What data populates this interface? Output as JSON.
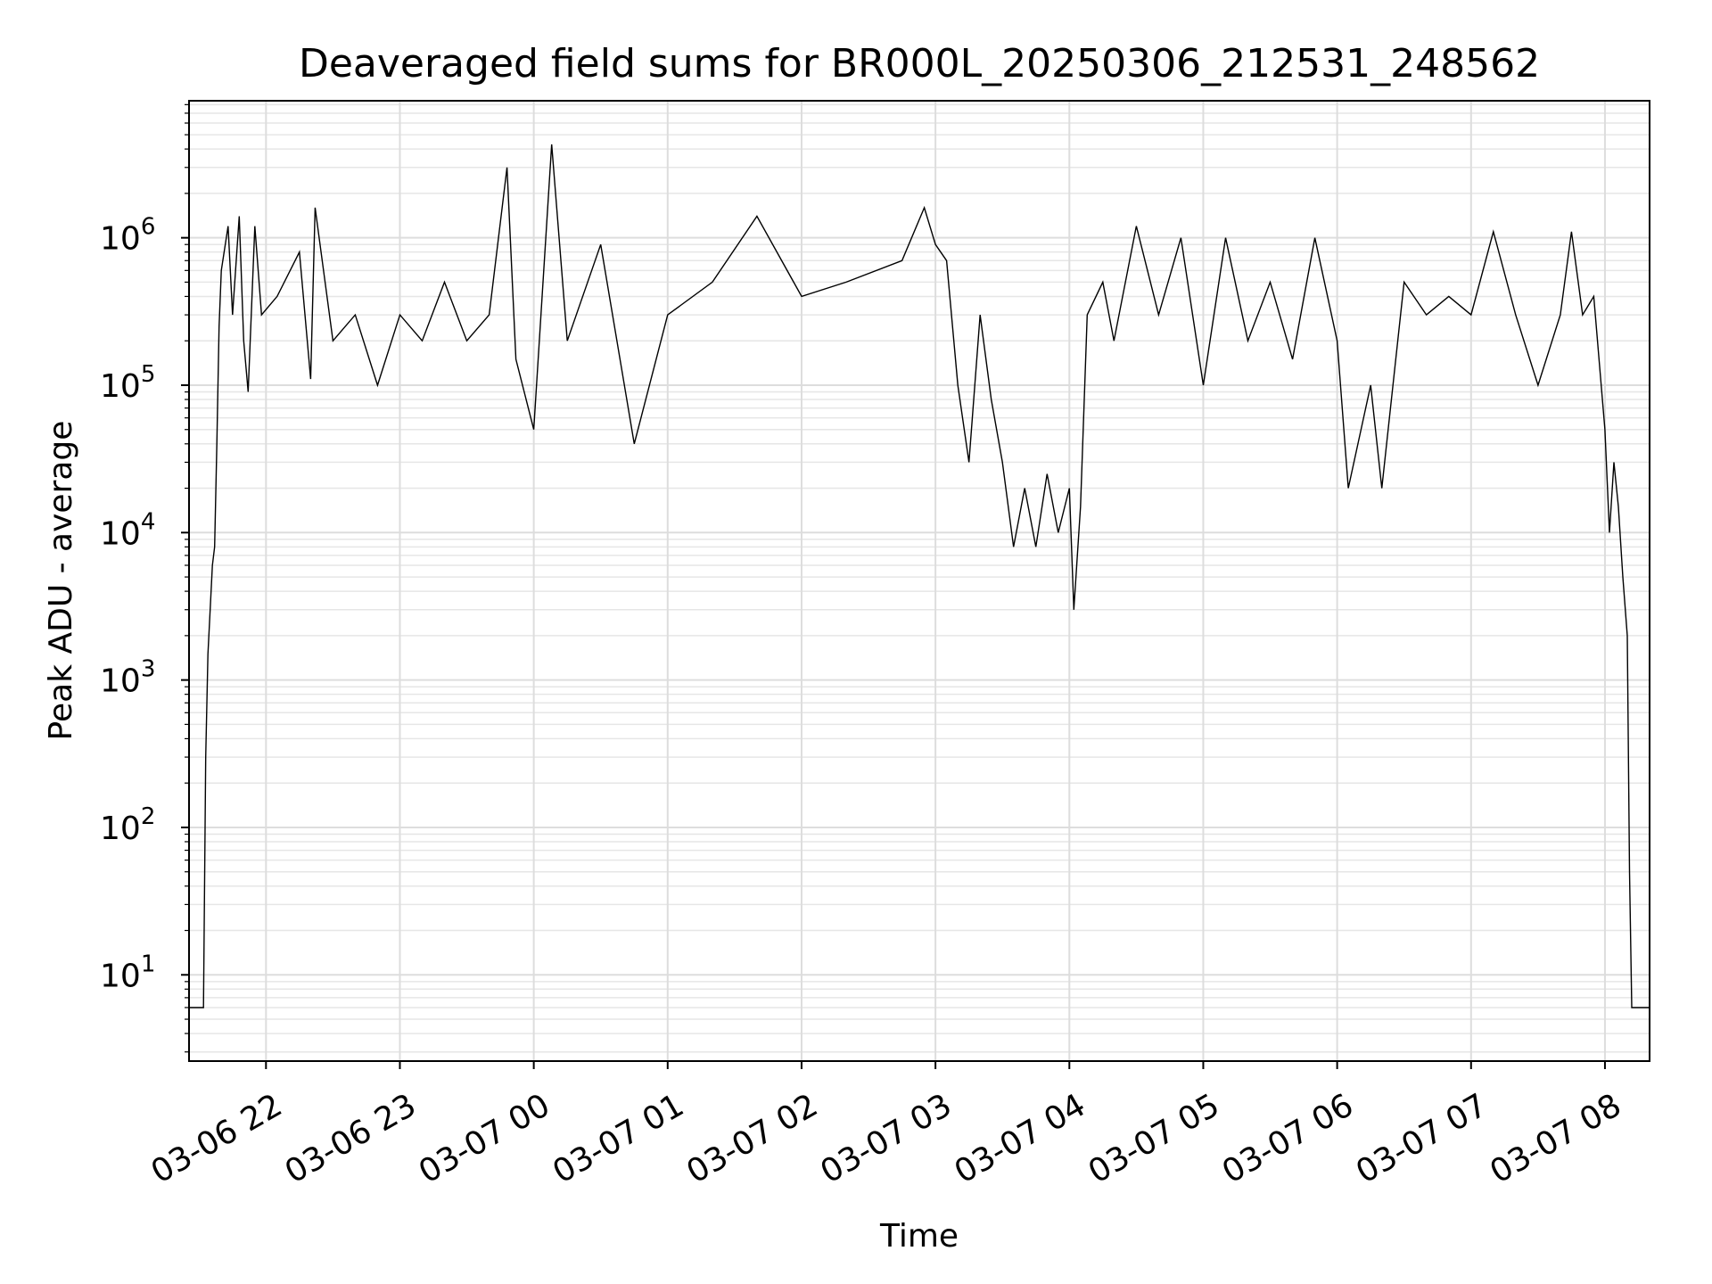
{
  "chart_data": {
    "type": "line",
    "title": "Deaveraged field sums for BR000L_20250306_212531_248562",
    "xlabel": "Time",
    "ylabel": "Peak ADU - average",
    "yscale": "log",
    "ylim": [
      2.6,
      8500000
    ],
    "xlim": [
      "2025-03-06 21:25:31",
      "2025-03-07 08:20:00"
    ],
    "grid": true,
    "x_ticks": [
      {
        "t": "2025-03-06 22:00",
        "label": "03-06 22"
      },
      {
        "t": "2025-03-06 23:00",
        "label": "03-06 23"
      },
      {
        "t": "2025-03-07 00:00",
        "label": "03-07 00"
      },
      {
        "t": "2025-03-07 01:00",
        "label": "03-07 01"
      },
      {
        "t": "2025-03-07 02:00",
        "label": "03-07 02"
      },
      {
        "t": "2025-03-07 03:00",
        "label": "03-07 03"
      },
      {
        "t": "2025-03-07 04:00",
        "label": "03-07 04"
      },
      {
        "t": "2025-03-07 05:00",
        "label": "03-07 05"
      },
      {
        "t": "2025-03-07 06:00",
        "label": "03-07 06"
      },
      {
        "t": "2025-03-07 07:00",
        "label": "03-07 07"
      },
      {
        "t": "2025-03-07 08:00",
        "label": "03-07 08"
      }
    ],
    "y_ticks": [
      {
        "value": 10,
        "base": "10",
        "exp": "1"
      },
      {
        "value": 100,
        "base": "10",
        "exp": "2"
      },
      {
        "value": 1000,
        "base": "10",
        "exp": "3"
      },
      {
        "value": 10000,
        "base": "10",
        "exp": "4"
      },
      {
        "value": 100000,
        "base": "10",
        "exp": "5"
      },
      {
        "value": 1000000,
        "base": "10",
        "exp": "6"
      }
    ],
    "series": [
      {
        "color": "#000000",
        "points": [
          [
            "2025-03-06 21:25:31",
            6
          ],
          [
            "2025-03-06 21:30:00",
            6
          ],
          [
            "2025-03-06 21:32:00",
            6
          ],
          [
            "2025-03-06 21:33:00",
            300
          ],
          [
            "2025-03-06 21:34:00",
            1500
          ],
          [
            "2025-03-06 21:35:00",
            3000
          ],
          [
            "2025-03-06 21:36:00",
            6000
          ],
          [
            "2025-03-06 21:37:00",
            8000
          ],
          [
            "2025-03-06 21:38:00",
            40000
          ],
          [
            "2025-03-06 21:39:00",
            250000
          ],
          [
            "2025-03-06 21:40:00",
            600000
          ],
          [
            "2025-03-06 21:43:00",
            1200000
          ],
          [
            "2025-03-06 21:45:00",
            300000
          ],
          [
            "2025-03-06 21:48:00",
            1400000
          ],
          [
            "2025-03-06 21:50:00",
            200000
          ],
          [
            "2025-03-06 21:52:00",
            90000
          ],
          [
            "2025-03-06 21:55:00",
            1200000
          ],
          [
            "2025-03-06 21:58:00",
            300000
          ],
          [
            "2025-03-06 22:05:00",
            400000
          ],
          [
            "2025-03-06 22:15:00",
            800000
          ],
          [
            "2025-03-06 22:20:00",
            110000
          ],
          [
            "2025-03-06 22:22:00",
            1600000
          ],
          [
            "2025-03-06 22:30:00",
            200000
          ],
          [
            "2025-03-06 22:40:00",
            300000
          ],
          [
            "2025-03-06 22:50:00",
            100000
          ],
          [
            "2025-03-06 23:00:00",
            300000
          ],
          [
            "2025-03-06 23:10:00",
            200000
          ],
          [
            "2025-03-06 23:20:00",
            500000
          ],
          [
            "2025-03-06 23:30:00",
            200000
          ],
          [
            "2025-03-06 23:40:00",
            300000
          ],
          [
            "2025-03-06 23:48:00",
            3000000
          ],
          [
            "2025-03-06 23:52:00",
            150000
          ],
          [
            "2025-03-07 00:00:00",
            50000
          ],
          [
            "2025-03-07 00:08:00",
            4300000
          ],
          [
            "2025-03-07 00:15:00",
            200000
          ],
          [
            "2025-03-07 00:30:00",
            900000
          ],
          [
            "2025-03-07 00:45:00",
            40000
          ],
          [
            "2025-03-07 01:00:00",
            300000
          ],
          [
            "2025-03-07 01:20:00",
            500000
          ],
          [
            "2025-03-07 01:40:00",
            1400000
          ],
          [
            "2025-03-07 02:00:00",
            400000
          ],
          [
            "2025-03-07 02:20:00",
            500000
          ],
          [
            "2025-03-07 02:45:00",
            700000
          ],
          [
            "2025-03-07 02:55:00",
            1600000
          ],
          [
            "2025-03-07 03:00:00",
            900000
          ],
          [
            "2025-03-07 03:05:00",
            700000
          ],
          [
            "2025-03-07 03:10:00",
            100000
          ],
          [
            "2025-03-07 03:15:00",
            30000
          ],
          [
            "2025-03-07 03:20:00",
            300000
          ],
          [
            "2025-03-07 03:25:00",
            80000
          ],
          [
            "2025-03-07 03:30:00",
            30000
          ],
          [
            "2025-03-07 03:35:00",
            8000
          ],
          [
            "2025-03-07 03:40:00",
            20000
          ],
          [
            "2025-03-07 03:45:00",
            8000
          ],
          [
            "2025-03-07 03:50:00",
            25000
          ],
          [
            "2025-03-07 03:55:00",
            10000
          ],
          [
            "2025-03-07 04:00:00",
            20000
          ],
          [
            "2025-03-07 04:02:00",
            3000
          ],
          [
            "2025-03-07 04:05:00",
            15000
          ],
          [
            "2025-03-07 04:08:00",
            300000
          ],
          [
            "2025-03-07 04:15:00",
            500000
          ],
          [
            "2025-03-07 04:20:00",
            200000
          ],
          [
            "2025-03-07 04:30:00",
            1200000
          ],
          [
            "2025-03-07 04:40:00",
            300000
          ],
          [
            "2025-03-07 04:50:00",
            1000000
          ],
          [
            "2025-03-07 05:00:00",
            100000
          ],
          [
            "2025-03-07 05:10:00",
            1000000
          ],
          [
            "2025-03-07 05:20:00",
            200000
          ],
          [
            "2025-03-07 05:30:00",
            500000
          ],
          [
            "2025-03-07 05:40:00",
            150000
          ],
          [
            "2025-03-07 05:50:00",
            1000000
          ],
          [
            "2025-03-07 06:00:00",
            200000
          ],
          [
            "2025-03-07 06:05:00",
            20000
          ],
          [
            "2025-03-07 06:15:00",
            100000
          ],
          [
            "2025-03-07 06:20:00",
            20000
          ],
          [
            "2025-03-07 06:30:00",
            500000
          ],
          [
            "2025-03-07 06:40:00",
            300000
          ],
          [
            "2025-03-07 06:50:00",
            400000
          ],
          [
            "2025-03-07 07:00:00",
            300000
          ],
          [
            "2025-03-07 07:10:00",
            1100000
          ],
          [
            "2025-03-07 07:20:00",
            300000
          ],
          [
            "2025-03-07 07:30:00",
            100000
          ],
          [
            "2025-03-07 07:40:00",
            300000
          ],
          [
            "2025-03-07 07:45:00",
            1100000
          ],
          [
            "2025-03-07 07:50:00",
            300000
          ],
          [
            "2025-03-07 07:55:00",
            400000
          ],
          [
            "2025-03-07 08:00:00",
            50000
          ],
          [
            "2025-03-07 08:02:00",
            10000
          ],
          [
            "2025-03-07 08:04:00",
            30000
          ],
          [
            "2025-03-07 08:06:00",
            15000
          ],
          [
            "2025-03-07 08:08:00",
            5000
          ],
          [
            "2025-03-07 08:10:00",
            2000
          ],
          [
            "2025-03-07 08:11:00",
            50
          ],
          [
            "2025-03-07 08:12:00",
            6
          ],
          [
            "2025-03-07 08:20:00",
            6
          ]
        ]
      }
    ]
  }
}
